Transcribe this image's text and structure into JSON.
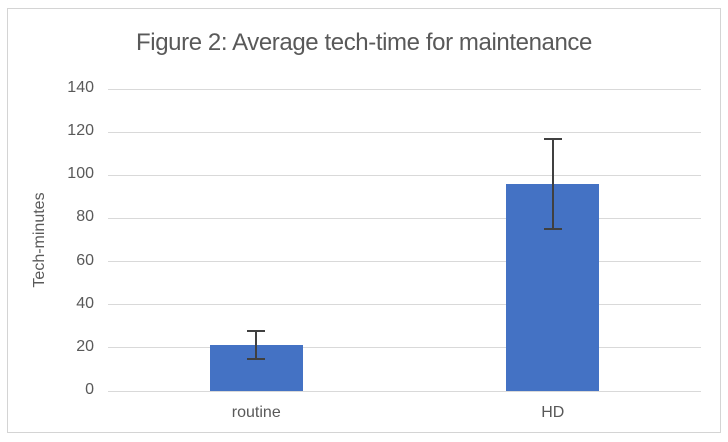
{
  "chart_data": {
    "type": "bar",
    "title": "Figure 2: Average tech-time for maintenance",
    "xlabel": "",
    "ylabel": "Tech-minutes",
    "categories": [
      "routine",
      "HD"
    ],
    "values": [
      21.5,
      96
    ],
    "error_bars": {
      "plus": [
        6.5,
        21
      ],
      "minus": [
        6.5,
        21
      ]
    },
    "ylim": [
      0,
      140
    ],
    "yticks": [
      0,
      20,
      40,
      60,
      80,
      100,
      120,
      140
    ],
    "grid": "horizontal",
    "legend": "none",
    "colors": {
      "bar": "#4472C4",
      "error_bar": "#404040",
      "gridline": "#d9d9d9",
      "axis_text": "#595959",
      "title_text": "#595959",
      "frame_border": "#d4d4d4",
      "background": "#ffffff"
    }
  }
}
